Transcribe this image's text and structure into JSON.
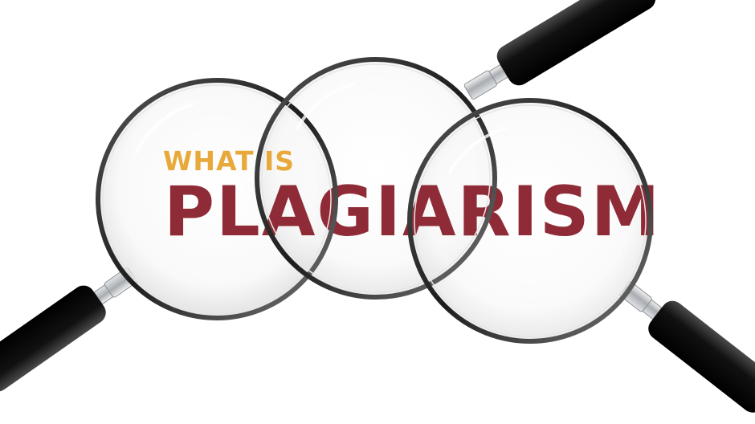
{
  "headline": {
    "prefix": "WHAT IS",
    "word": "PLAGIARISM"
  },
  "colors": {
    "prefix": "#E8A93A",
    "word": "#8E2B36",
    "handle": "#111111",
    "ferrule": "#BFC3C7",
    "rim": "#2a2a2a"
  },
  "icons": {
    "magnifier": "magnifying-glass-icon"
  }
}
